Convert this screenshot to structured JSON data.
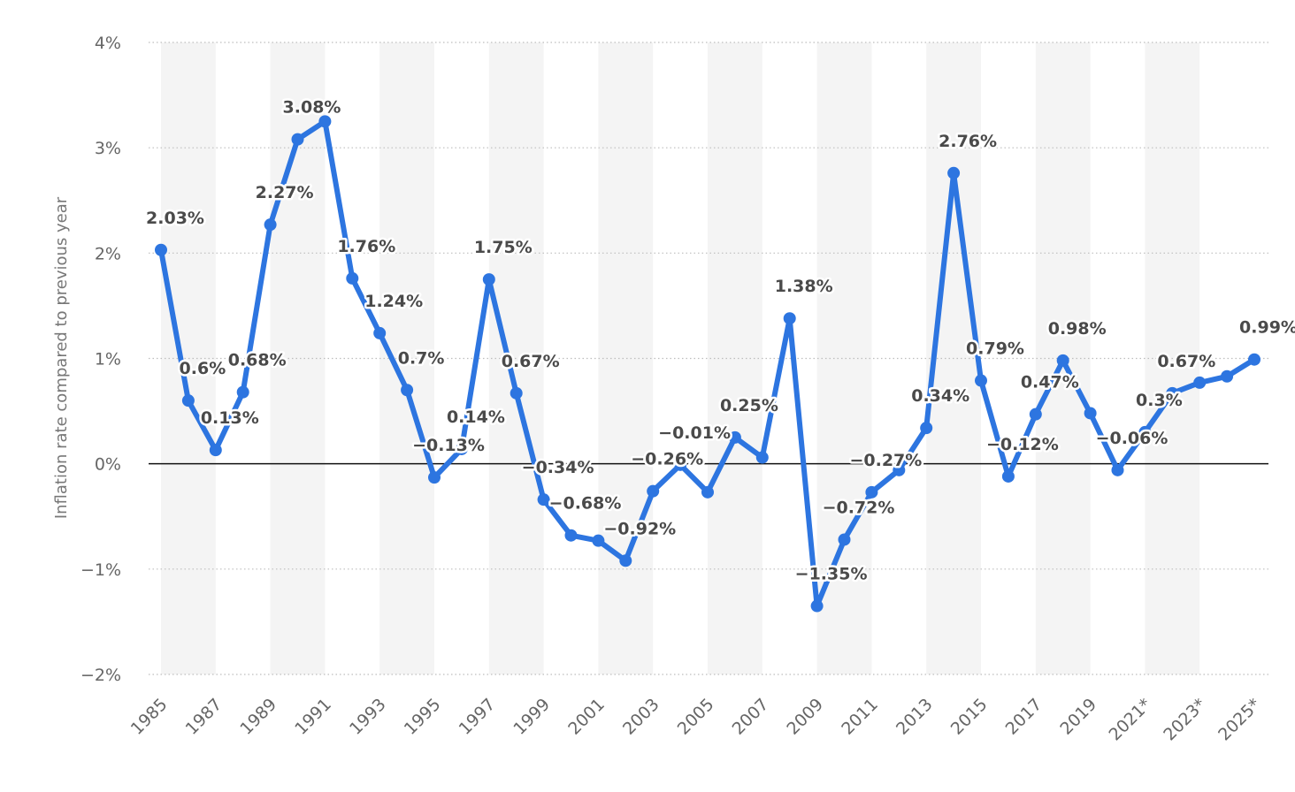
{
  "chart_data": {
    "type": "line",
    "ylabel": "Inflation rate compared to previous year",
    "ylim": [
      -2,
      4
    ],
    "y_ticks": [
      -2,
      -1,
      0,
      1,
      2,
      3,
      4
    ],
    "y_tick_labels": [
      "−2%",
      "−1%",
      "0%",
      "1%",
      "2%",
      "3%",
      "4%"
    ],
    "grid": "horizontal dotted",
    "bands": "alternating light gray column bands",
    "color": "#2d75e0",
    "x": [
      "1985",
      "1986",
      "1987",
      "1988",
      "1989",
      "1990",
      "1991",
      "1992",
      "1993",
      "1994",
      "1995",
      "1996",
      "1997",
      "1998",
      "1999",
      "2000",
      "2001",
      "2002",
      "2003",
      "2004",
      "2005",
      "2006",
      "2007",
      "2008",
      "2009",
      "2010",
      "2011",
      "2012",
      "2013",
      "2014",
      "2015",
      "2016",
      "2017",
      "2018",
      "2019",
      "2020",
      "2021*",
      "2022*",
      "2023*",
      "2024*",
      "2025*"
    ],
    "x_tick_labels": [
      "1985",
      "1987",
      "1989",
      "1991",
      "1993",
      "1995",
      "1997",
      "1999",
      "2001",
      "2003",
      "2005",
      "2007",
      "2009",
      "2011",
      "2013",
      "2015",
      "2017",
      "2019",
      "2021*",
      "2023*",
      "2025*"
    ],
    "values": [
      2.03,
      0.6,
      0.13,
      0.68,
      2.27,
      3.08,
      3.25,
      1.76,
      1.24,
      0.7,
      -0.13,
      0.14,
      1.75,
      0.67,
      -0.34,
      -0.68,
      -0.73,
      -0.92,
      -0.26,
      -0.01,
      -0.27,
      0.25,
      0.06,
      1.38,
      -1.35,
      -0.72,
      -0.27,
      -0.06,
      0.34,
      2.76,
      0.79,
      -0.12,
      0.47,
      0.98,
      0.48,
      -0.06,
      0.3,
      0.67,
      0.77,
      0.83,
      0.99
    ],
    "labels": [
      {
        "i": 0,
        "text": "2.03%"
      },
      {
        "i": 1,
        "text": "0.6%"
      },
      {
        "i": 2,
        "text": "0.13%"
      },
      {
        "i": 3,
        "text": "0.68%"
      },
      {
        "i": 4,
        "text": "2.27%"
      },
      {
        "i": 5,
        "text": "3.08%"
      },
      {
        "i": 7,
        "text": "1.76%"
      },
      {
        "i": 8,
        "text": "1.24%"
      },
      {
        "i": 9,
        "text": "0.7%"
      },
      {
        "i": 10,
        "text": "−0.13%"
      },
      {
        "i": 11,
        "text": "0.14%"
      },
      {
        "i": 12,
        "text": "1.75%"
      },
      {
        "i": 13,
        "text": "0.67%"
      },
      {
        "i": 14,
        "text": "−0.34%"
      },
      {
        "i": 15,
        "text": "−0.68%"
      },
      {
        "i": 17,
        "text": "−0.92%"
      },
      {
        "i": 18,
        "text": "−0.26%"
      },
      {
        "i": 19,
        "text": "−0.01%"
      },
      {
        "i": 21,
        "text": "0.25%"
      },
      {
        "i": 23,
        "text": "1.38%"
      },
      {
        "i": 24,
        "text": "−1.35%"
      },
      {
        "i": 25,
        "text": "−0.72%"
      },
      {
        "i": 26,
        "text": "−0.27%"
      },
      {
        "i": 28,
        "text": "0.34%"
      },
      {
        "i": 29,
        "text": "2.76%"
      },
      {
        "i": 30,
        "text": "0.79%"
      },
      {
        "i": 31,
        "text": "−0.12%"
      },
      {
        "i": 32,
        "text": "0.47%"
      },
      {
        "i": 33,
        "text": "0.98%"
      },
      {
        "i": 35,
        "text": "−0.06%"
      },
      {
        "i": 36,
        "text": "0.3%"
      },
      {
        "i": 37,
        "text": "0.67%"
      },
      {
        "i": 40,
        "text": "0.99%"
      }
    ]
  }
}
